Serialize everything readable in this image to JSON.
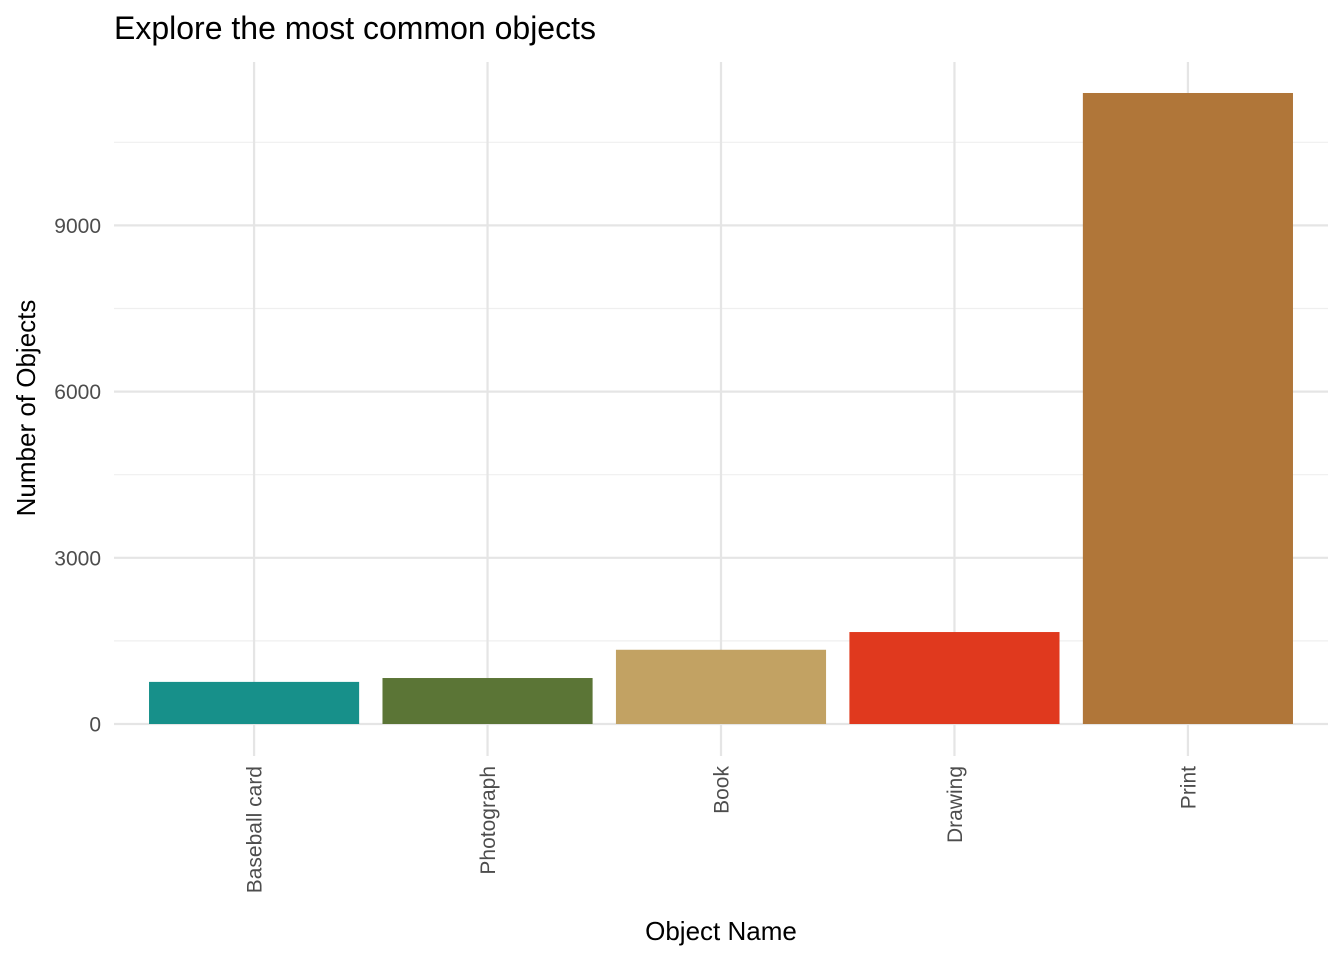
{
  "chart_data": {
    "type": "bar",
    "title": "Explore the most common objects",
    "xlabel": "Object Name",
    "ylabel": "Number of Objects",
    "categories": [
      "Baseball card",
      "Photograph",
      "Book",
      "Drawing",
      "Print"
    ],
    "values": [
      760,
      830,
      1340,
      1660,
      11390
    ],
    "colors": [
      "#17908A",
      "#5B7536",
      "#C2A263",
      "#E0391E",
      "#B07639"
    ],
    "yticks": [
      0,
      3000,
      6000,
      9000
    ],
    "ylim": [
      -600,
      12000
    ],
    "grid": true,
    "legend": "none"
  }
}
